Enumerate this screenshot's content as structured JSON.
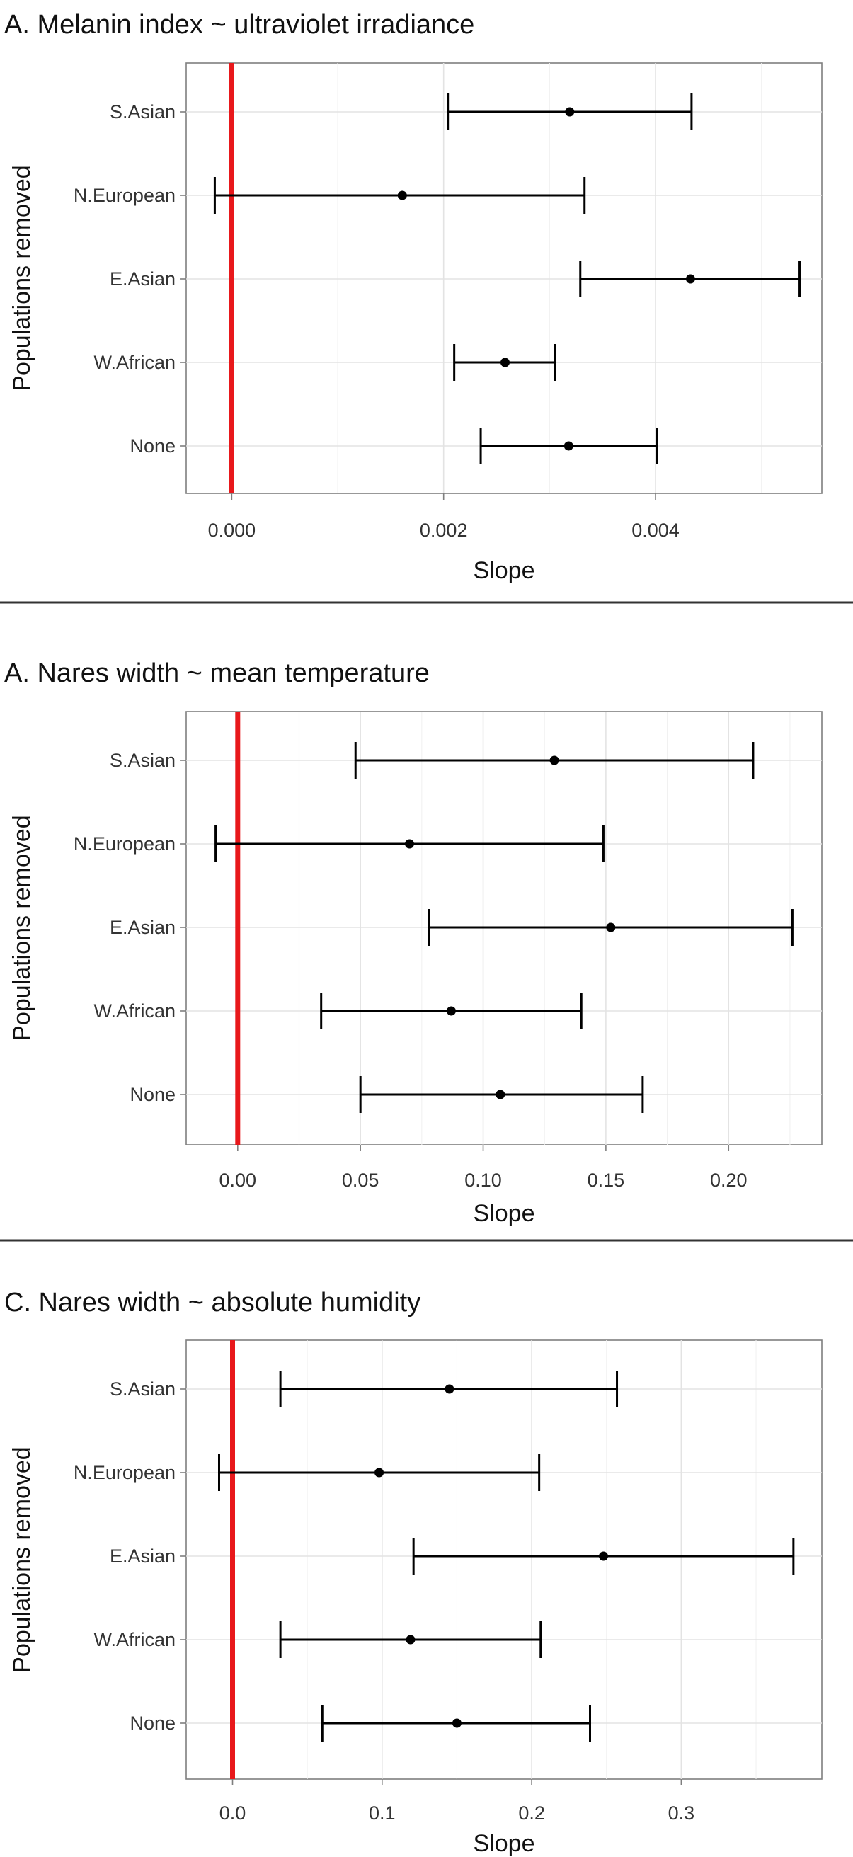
{
  "chart_data": [
    {
      "type": "errorbar",
      "title": "A. Melanin index ~ ultraviolet irradiance",
      "xlabel": "Slope",
      "ylabel": "Populations removed",
      "categories": [
        "S.Asian",
        "N.European",
        "E.Asian",
        "W.African",
        "None"
      ],
      "estimate": [
        0.00319,
        0.00161,
        0.00433,
        0.00258,
        0.00318
      ],
      "ci_low": [
        0.00204,
        -0.00016,
        0.00329,
        0.0021,
        0.00235
      ],
      "ci_high": [
        0.00434,
        0.00333,
        0.00536,
        0.00305,
        0.00401
      ],
      "xticks": [
        0.0,
        0.002,
        0.004
      ],
      "xtick_labels": [
        "0.000",
        "0.002",
        "0.004"
      ],
      "xlim": [
        -0.00043,
        0.00557
      ],
      "reference_line": 0,
      "reference_color": "#e8181b",
      "grid": true
    },
    {
      "type": "errorbar",
      "title": "A. Nares width ~ mean temperature",
      "xlabel": "Slope",
      "ylabel": "Populations removed",
      "categories": [
        "S.Asian",
        "N.European",
        "E.Asian",
        "W.African",
        "None"
      ],
      "estimate": [
        0.129,
        0.07,
        0.152,
        0.087,
        0.107
      ],
      "ci_low": [
        0.048,
        -0.009,
        0.078,
        0.034,
        0.05
      ],
      "ci_high": [
        0.21,
        0.149,
        0.226,
        0.14,
        0.165
      ],
      "xticks": [
        0.0,
        0.05,
        0.1,
        0.15,
        0.2
      ],
      "xtick_labels": [
        "0.00",
        "0.05",
        "0.10",
        "0.15",
        "0.20"
      ],
      "xlim": [
        -0.021,
        0.238
      ],
      "reference_line": 0,
      "reference_color": "#e8181b",
      "grid": true
    },
    {
      "type": "errorbar",
      "title": "C. Nares width ~ absolute humidity",
      "xlabel": "Slope",
      "ylabel": "Populations removed",
      "categories": [
        "S.Asian",
        "N.European",
        "E.Asian",
        "W.African",
        "None"
      ],
      "estimate": [
        0.145,
        0.098,
        0.248,
        0.119,
        0.15
      ],
      "ci_low": [
        0.032,
        -0.009,
        0.121,
        0.032,
        0.06
      ],
      "ci_high": [
        0.257,
        0.205,
        0.375,
        0.206,
        0.239
      ],
      "xticks": [
        0.0,
        0.1,
        0.2,
        0.3
      ],
      "xtick_labels": [
        "0.0",
        "0.1",
        "0.2",
        "0.3"
      ],
      "xlim": [
        -0.031,
        0.394
      ],
      "reference_line": 0,
      "reference_color": "#e8181b",
      "grid": true
    }
  ]
}
